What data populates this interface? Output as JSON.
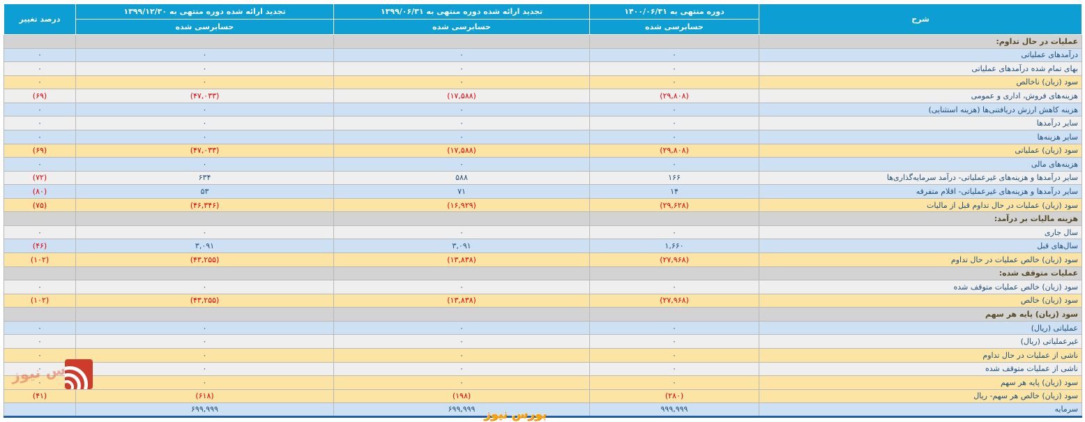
{
  "table": {
    "header": {
      "description": "شرح",
      "percent_change": "درصد تغییر",
      "periods": [
        {
          "title": "دوره منتهی به ۱۴۰۰/۰۶/۳۱",
          "subtitle": "حسابرسی شده"
        },
        {
          "title": "تجدید ارائه شده دوره منتهی به ۱۳۹۹/۰۶/۳۱",
          "subtitle": "حسابرسی شده"
        },
        {
          "title": "تجدید ارائه شده دوره منتهی به ۱۳۹۹/۱۲/۳۰",
          "subtitle": "حسابرسی شده"
        }
      ]
    },
    "rows": [
      {
        "type": "section",
        "label": "عملیات در حال تداوم:",
        "v1400": "",
        "v1399_06": "",
        "v1399_12": "",
        "pct": ""
      },
      {
        "type": "data",
        "style": "blue",
        "label": "درآمدهای عملیاتی",
        "v1400": "۰",
        "v1399_06": "۰",
        "v1399_12": "۰",
        "pct": "۰"
      },
      {
        "type": "data",
        "style": "white",
        "label": "بهای تمام شده درآمدهای عملیاتی",
        "v1400": "۰",
        "v1399_06": "۰",
        "v1399_12": "۰",
        "pct": "۰"
      },
      {
        "type": "data",
        "style": "yellow",
        "label": "سود (زیان) ناخالص",
        "v1400": "۰",
        "v1399_06": "۰",
        "v1399_12": "۰",
        "pct": "۰"
      },
      {
        "type": "data",
        "style": "white",
        "label": "هزینه‌های فروش، اداری و عمومی",
        "v1400": "(۲۹,۸۰۸)",
        "v1399_06": "(۱۷,۵۸۸)",
        "v1399_12": "(۴۷,۰۳۳)",
        "pct": "(۶۹)"
      },
      {
        "type": "data",
        "style": "blue",
        "label": "هزینه کاهش ارزش دریافتنی‌ها (هزینه استثنایی)",
        "v1400": "۰",
        "v1399_06": "۰",
        "v1399_12": "۰",
        "pct": "۰"
      },
      {
        "type": "data",
        "style": "white",
        "label": "سایر درآمدها",
        "v1400": "۰",
        "v1399_06": "۰",
        "v1399_12": "۰",
        "pct": "۰"
      },
      {
        "type": "data",
        "style": "blue",
        "label": "سایر هزینه‌ها",
        "v1400": "۰",
        "v1399_06": "۰",
        "v1399_12": "۰",
        "pct": "۰"
      },
      {
        "type": "data",
        "style": "yellow",
        "label": "سود (زیان) عملیاتی",
        "v1400": "(۲۹,۸۰۸)",
        "v1399_06": "(۱۷,۵۸۸)",
        "v1399_12": "(۴۷,۰۳۳)",
        "pct": "(۶۹)"
      },
      {
        "type": "data",
        "style": "blue",
        "label": "هزینه‌های مالی",
        "v1400": "۰",
        "v1399_06": "۰",
        "v1399_12": "۰",
        "pct": "۰"
      },
      {
        "type": "data",
        "style": "white",
        "label": "سایر درآمدها و هزینه‌های غیرعملیاتی- درآمد سرمایه‌گذاری‌ها",
        "v1400": "۱۶۶",
        "v1399_06": "۵۸۸",
        "v1399_12": "۶۳۴",
        "pct": "(۷۲)"
      },
      {
        "type": "data",
        "style": "blue",
        "label": "سایر درآمدها و هزینه‌های غیرعملیاتی- اقلام متفرقه",
        "v1400": "۱۴",
        "v1399_06": "۷۱",
        "v1399_12": "۵۳",
        "pct": "(۸۰)"
      },
      {
        "type": "data",
        "style": "yellow",
        "label": "سود (زیان) عملیات در حال تداوم قبل از مالیات",
        "v1400": "(۲۹,۶۲۸)",
        "v1399_06": "(۱۶,۹۲۹)",
        "v1399_12": "(۴۶,۳۴۶)",
        "pct": "(۷۵)"
      },
      {
        "type": "section",
        "label": "هزینه مالیات بر درآمد:",
        "v1400": "",
        "v1399_06": "",
        "v1399_12": "",
        "pct": ""
      },
      {
        "type": "data",
        "style": "white",
        "label": "سال جاری",
        "v1400": "۰",
        "v1399_06": "۰",
        "v1399_12": "۰",
        "pct": "۰"
      },
      {
        "type": "data",
        "style": "blue",
        "label": "سال‌های قبل",
        "v1400": "۱,۶۶۰",
        "v1399_06": "۳,۰۹۱",
        "v1399_12": "۳,۰۹۱",
        "pct": "(۴۶)"
      },
      {
        "type": "data",
        "style": "yellow",
        "label": "سود (زیان) خالص عملیات در حال تداوم",
        "v1400": "(۲۷,۹۶۸)",
        "v1399_06": "(۱۳,۸۳۸)",
        "v1399_12": "(۴۳,۲۵۵)",
        "pct": "(۱۰۲)"
      },
      {
        "type": "section",
        "label": "عملیات متوقف شده:",
        "v1400": "",
        "v1399_06": "",
        "v1399_12": "",
        "pct": ""
      },
      {
        "type": "data",
        "style": "white",
        "label": "سود (زیان) خالص عملیات متوقف شده",
        "v1400": "۰",
        "v1399_06": "۰",
        "v1399_12": "۰",
        "pct": "۰"
      },
      {
        "type": "data",
        "style": "yellow",
        "label": "سود (زیان) خالص",
        "v1400": "(۲۷,۹۶۸)",
        "v1399_06": "(۱۳,۸۳۸)",
        "v1399_12": "(۴۳,۲۵۵)",
        "pct": "(۱۰۲)"
      },
      {
        "type": "section",
        "label": "سود (زیان) پایه هر سهم",
        "v1400": "",
        "v1399_06": "",
        "v1399_12": "",
        "pct": ""
      },
      {
        "type": "data",
        "style": "blue",
        "label": "عملیاتی (ریال)",
        "v1400": "۰",
        "v1399_06": "۰",
        "v1399_12": "۰",
        "pct": "۰"
      },
      {
        "type": "data",
        "style": "white",
        "label": "غیرعملیاتی (ریال)",
        "v1400": "۰",
        "v1399_06": "۰",
        "v1399_12": "۰",
        "pct": "۰"
      },
      {
        "type": "data",
        "style": "yellow",
        "label": "ناشی از عملیات در حال تداوم",
        "v1400": "۰",
        "v1399_06": "۰",
        "v1399_12": "۰",
        "pct": "۰"
      },
      {
        "type": "data",
        "style": "white",
        "label": "ناشی از عملیات متوقف شده",
        "v1400": "۰",
        "v1399_06": "۰",
        "v1399_12": "۰",
        "pct": "۰"
      },
      {
        "type": "data",
        "style": "yellow",
        "label": "سود (زیان) پایه هر سهم",
        "v1400": "۰",
        "v1399_06": "۰",
        "v1399_12": "۰",
        "pct": "۰"
      },
      {
        "type": "data",
        "style": "yellow",
        "label": "سود (زیان) خالص هر سهم- ریال",
        "v1400": "(۲۸۰)",
        "v1399_06": "(۱۹۸)",
        "v1399_12": "(۶۱۸)",
        "pct": "(۴۱)"
      },
      {
        "type": "data",
        "style": "blue",
        "label": "سرمایه",
        "v1400": "۹۹۹,۹۹۹",
        "v1399_06": "۶۹۹,۹۹۹",
        "v1399_12": "۶۹۹,۹۹۹",
        "pct": ""
      }
    ]
  },
  "watermarks": {
    "left_text": "بورس نیوز",
    "bottom_text": "بورس نیوز"
  },
  "colors": {
    "header_bg": "#0d9fd4",
    "row_blue": "#cde0f4",
    "row_white": "#efefef",
    "row_yellow": "#fce4a4",
    "row_section": "#d3d3d3",
    "text_navy": "#1f4e79",
    "text_negative": "#e60000",
    "section_text": "#554826",
    "bottom_border_blue": "#1f5fa8",
    "logo_red": "#ce3b2b",
    "watermark_orange": "#f7a600"
  }
}
